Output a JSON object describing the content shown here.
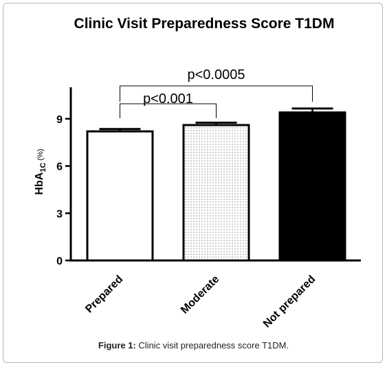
{
  "chart_data": {
    "type": "bar",
    "title": "Clinic Visit Preparedness Score T1DM",
    "ylabel": {
      "base": "HbA",
      "sub": "1C",
      "suffix": " (%)"
    },
    "xlabel": "",
    "categories": [
      "Prepared",
      "Moderate",
      "Not prepared"
    ],
    "values": [
      8.2,
      8.6,
      9.4
    ],
    "errors": [
      0.15,
      0.15,
      0.25
    ],
    "fills": [
      "white",
      "dotted",
      "black"
    ],
    "ylim": [
      0,
      11
    ],
    "yticks": [
      0,
      3,
      6,
      9
    ],
    "grid": false,
    "annotations": [
      {
        "text": "p<0.0005",
        "from": 0,
        "to": 2
      },
      {
        "text": "p<0.001",
        "from": 0,
        "to": 1
      }
    ]
  },
  "caption": {
    "label": "Figure 1:",
    "text": " Clinic visit preparedness score T1DM."
  },
  "colors": {
    "axis": "#000000",
    "bar_fill_dark": "#000000",
    "bar_fill_light": "#ffffff",
    "border": "#b5b5b5"
  }
}
